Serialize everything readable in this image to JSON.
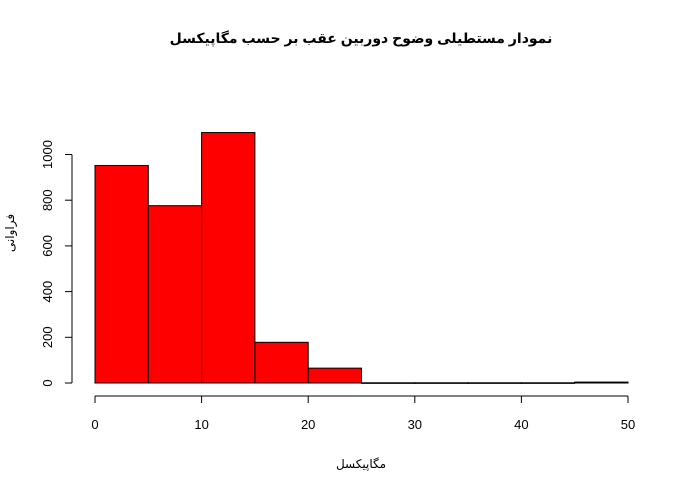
{
  "chart_data": {
    "type": "bar",
    "subtype": "histogram",
    "title": "نمودار مستطیلی وضوح دوربین عقب بر حسب مگاپیکسل",
    "xlabel": "مگاپیکسل",
    "ylabel": "فراوانی",
    "bins": [
      {
        "start": 0,
        "end": 5,
        "value": 952
      },
      {
        "start": 5,
        "end": 10,
        "value": 776
      },
      {
        "start": 10,
        "end": 15,
        "value": 1096
      },
      {
        "start": 15,
        "end": 20,
        "value": 178
      },
      {
        "start": 20,
        "end": 25,
        "value": 65
      },
      {
        "start": 25,
        "end": 30,
        "value": 1
      },
      {
        "start": 30,
        "end": 35,
        "value": 1
      },
      {
        "start": 35,
        "end": 40,
        "value": 1
      },
      {
        "start": 40,
        "end": 45,
        "value": 1
      },
      {
        "start": 45,
        "end": 50,
        "value": 4
      }
    ],
    "xlim": [
      0,
      50
    ],
    "ylim": [
      0,
      1100
    ],
    "xticks": [
      "0",
      "10",
      "20",
      "30",
      "40",
      "50"
    ],
    "yticks": [
      "0",
      "200",
      "400",
      "600",
      "800",
      "1000"
    ],
    "bar_color": "#ff0000",
    "grid": false,
    "legend": "none"
  }
}
